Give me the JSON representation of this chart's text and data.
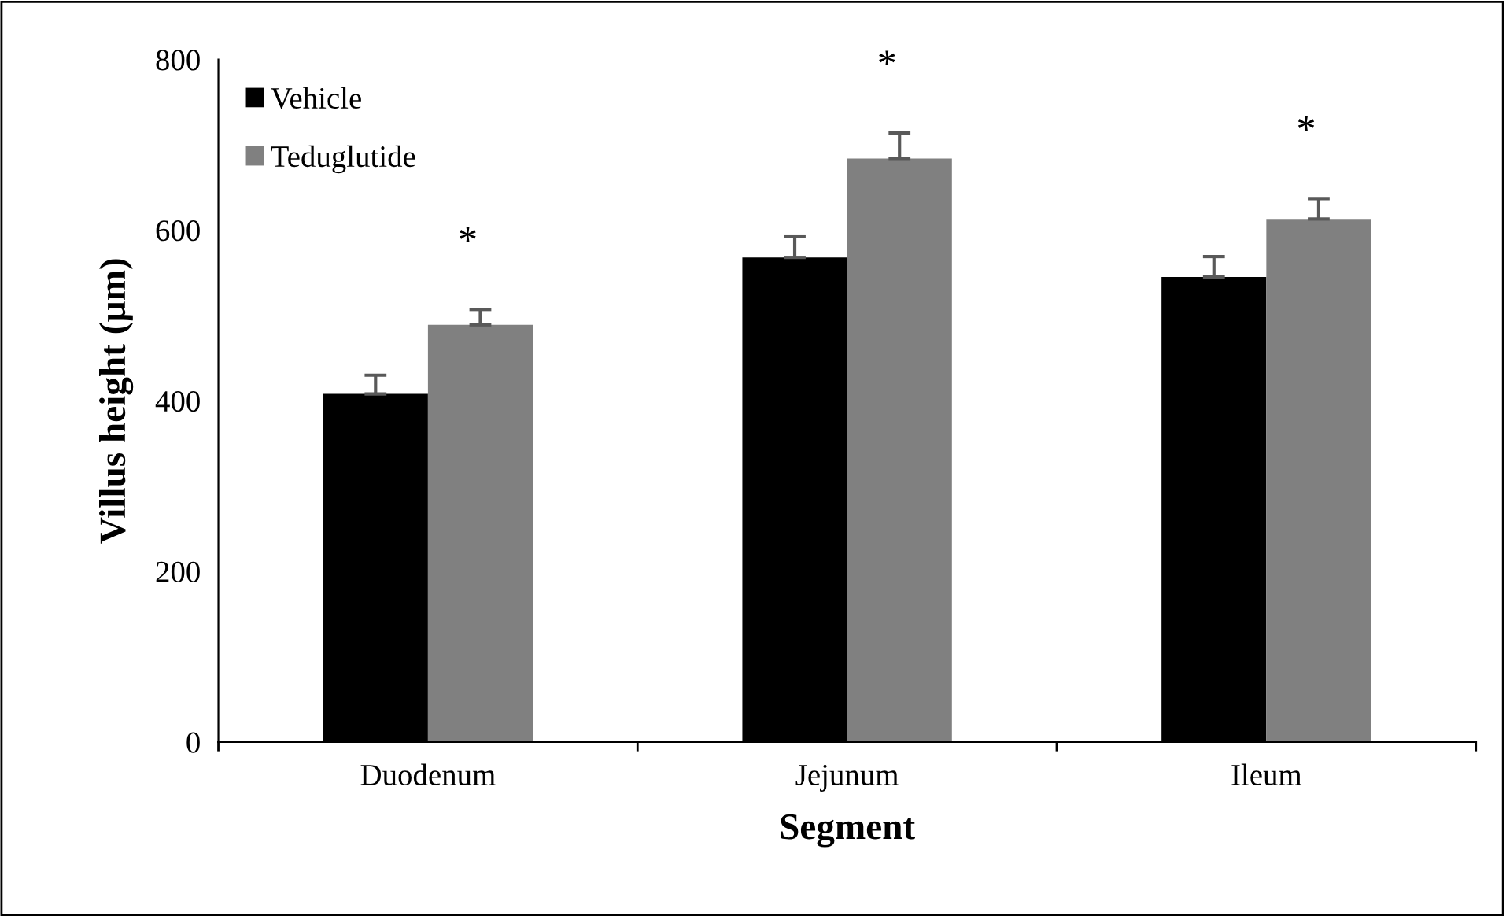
{
  "chart_data": {
    "type": "bar",
    "xlabel": "Segment",
    "ylabel": "Villus height (µm)",
    "categories": [
      "Duodenum",
      "Jejunum",
      "Ileum"
    ],
    "series": [
      {
        "name": "Vehicle",
        "color": "#000000",
        "values": [
          408,
          568,
          545
        ],
        "errors": [
          22,
          25,
          24
        ]
      },
      {
        "name": "Teduglutide",
        "color": "#808080",
        "values": [
          489,
          684,
          613
        ],
        "errors": [
          18,
          30,
          24
        ]
      }
    ],
    "ylim": [
      0,
      800
    ],
    "yticks": [
      0,
      200,
      400,
      600,
      800
    ],
    "grid": false,
    "legend": "top left",
    "annotations": [
      "*",
      "*",
      "*"
    ]
  }
}
